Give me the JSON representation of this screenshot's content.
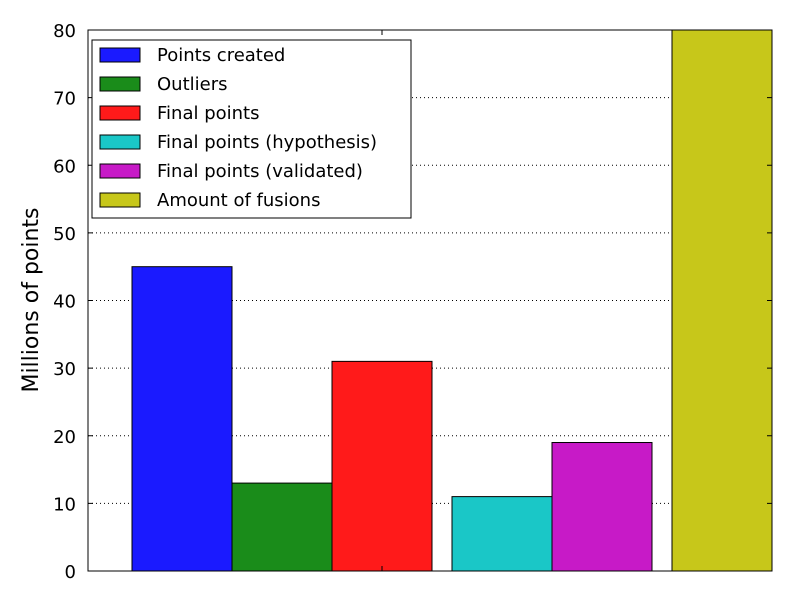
{
  "chart_data": {
    "type": "bar",
    "title": "",
    "xlabel": "",
    "ylabel": "Millions of points",
    "ylim": [
      0,
      80
    ],
    "yticks": [
      0,
      10,
      20,
      30,
      40,
      50,
      60,
      70,
      80
    ],
    "grid": "horizontal dotted",
    "legend_position": "top-left",
    "series": [
      {
        "name": "Points created",
        "value": 45,
        "color": "#1a1aff"
      },
      {
        "name": "Outliers",
        "value": 13,
        "color": "#1a8c1a"
      },
      {
        "name": "Final points",
        "value": 31,
        "color": "#ff1a1a"
      },
      {
        "name": "Final points (hypothesis)",
        "value": 11,
        "color": "#1ac7c7"
      },
      {
        "name": "Final points (validated)",
        "value": 19,
        "color": "#c71ac7"
      },
      {
        "name": "Amount of fusions",
        "value": 80,
        "color": "#c7c71a"
      }
    ]
  }
}
